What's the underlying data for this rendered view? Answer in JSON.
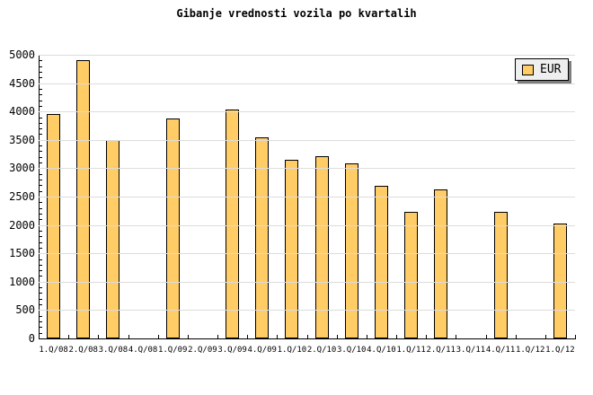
{
  "title": "Gibanje vrednosti vozila po kvartalih",
  "legend": {
    "label": "EUR",
    "swatch_color": "#FFCC66"
  },
  "chart_data": {
    "type": "bar",
    "title": "Gibanje vrednosti vozila po kvartalih",
    "categories": [
      "1.Q/08",
      "2.Q/08",
      "3.Q/08",
      "4.Q/08",
      "1.Q/09",
      "2.Q/09",
      "3.Q/09",
      "4.Q/09",
      "1.Q/10",
      "2.Q/10",
      "3.Q/10",
      "4.Q/10",
      "1.Q/11",
      "2.Q/11",
      "3.Q/11",
      "4.Q/11",
      "1.Q/12",
      "1.Q/12"
    ],
    "series": [
      {
        "name": "EUR",
        "values": [
          3950,
          4900,
          3500,
          0,
          3880,
          0,
          4030,
          3550,
          3150,
          3210,
          3080,
          2690,
          2230,
          2630,
          0,
          2230,
          0,
          2030
        ]
      }
    ],
    "missing_value_means_no_bar": true,
    "xlabel": "",
    "ylabel": "",
    "ylim": [
      0,
      5000
    ],
    "ytick_step": 500,
    "y_minor_tick_step": 100,
    "ytick_labels": [
      "0",
      "500",
      "1000",
      "1500",
      "2000",
      "2500",
      "3000",
      "3500",
      "4000",
      "4500",
      "5000"
    ],
    "grid": "horizontal",
    "grid_color": "#dcdcdc",
    "bar_color": "#FFCC66",
    "bar_border_color": "#000000",
    "axis_color": "#000000",
    "background_color": "#ffffff",
    "legend_position": "top-right",
    "legend_entries": [
      "EUR"
    ]
  }
}
